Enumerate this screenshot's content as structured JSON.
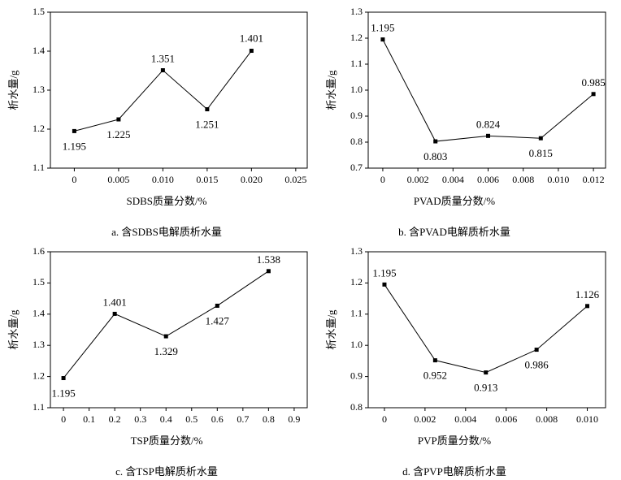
{
  "chart_data": [
    {
      "type": "line",
      "caption": "a. 含SDBS电解质析水量",
      "xlabel": "SDBS质量分数/%",
      "ylabel": "析水量/g",
      "color": "#000000",
      "x": [
        0,
        0.005,
        0.01,
        0.015,
        0.02
      ],
      "values": [
        1.195,
        1.225,
        1.351,
        1.251,
        1.401
      ],
      "xlim": [
        -0.0027,
        0.0263
      ],
      "ylim": [
        1.1,
        1.5
      ],
      "xticks": [
        0,
        0.005,
        {
          "value": 0.01,
          "label": "0.010"
        },
        0.015,
        {
          "value": 0.02,
          "label": "0.020"
        },
        0.025
      ],
      "yticks": [
        1.1,
        1.2,
        1.3,
        1.4,
        1.5
      ]
    },
    {
      "type": "line",
      "caption": "b. 含PVAD电解质析水量",
      "xlabel": "PVAD质量分数/%",
      "ylabel": "析水量/g",
      "color": "#000000",
      "x": [
        0,
        0.003,
        0.006,
        0.009,
        0.012
      ],
      "values": [
        1.195,
        0.803,
        0.824,
        0.815,
        0.985
      ],
      "xlim": [
        -0.00083,
        0.01269
      ],
      "ylim": [
        0.7,
        1.3
      ],
      "xticks": [
        0,
        0.002,
        0.004,
        0.006,
        0.008,
        {
          "value": 0.01,
          "label": "0.010"
        },
        0.012
      ],
      "yticks": [
        0.7,
        0.8,
        0.9,
        {
          "value": 1,
          "label": "1.0"
        },
        1.1,
        1.2,
        1.3
      ]
    },
    {
      "type": "line",
      "caption": "c. 含TSP电解质析水量",
      "xlabel": "TSP质量分数/%",
      "ylabel": "析水量/g",
      "color": "#000000",
      "x": [
        0,
        0.2,
        0.4,
        0.6,
        0.8
      ],
      "values": [
        1.195,
        1.401,
        1.329,
        1.427,
        1.538
      ],
      "xlim": [
        -0.051,
        0.951
      ],
      "ylim": [
        1.1,
        1.6
      ],
      "xticks": [
        0,
        0.1,
        0.2,
        0.3,
        0.4,
        0.5,
        0.6,
        0.7,
        0.8,
        0.9
      ],
      "yticks": [
        1.1,
        1.2,
        1.3,
        1.4,
        1.5,
        1.6
      ]
    },
    {
      "type": "line",
      "caption": "d. 含PVP电解质析水量",
      "xlabel": "PVP质量分数/%",
      "ylabel": "析水量/g",
      "color": "#000000",
      "x": [
        0,
        0.0025,
        0.005,
        0.0075,
        0.01
      ],
      "values": [
        1.195,
        0.952,
        0.913,
        0.986,
        1.126
      ],
      "xlim": [
        -0.0008,
        0.0109
      ],
      "ylim": [
        0.8,
        1.3
      ],
      "xticks": [
        0,
        0.002,
        0.004,
        0.006,
        0.008,
        {
          "value": 0.01,
          "label": "0.010"
        }
      ],
      "yticks": [
        0.8,
        0.9,
        {
          "value": 1,
          "label": "1.0"
        },
        1.1,
        1.2,
        1.3
      ]
    }
  ]
}
